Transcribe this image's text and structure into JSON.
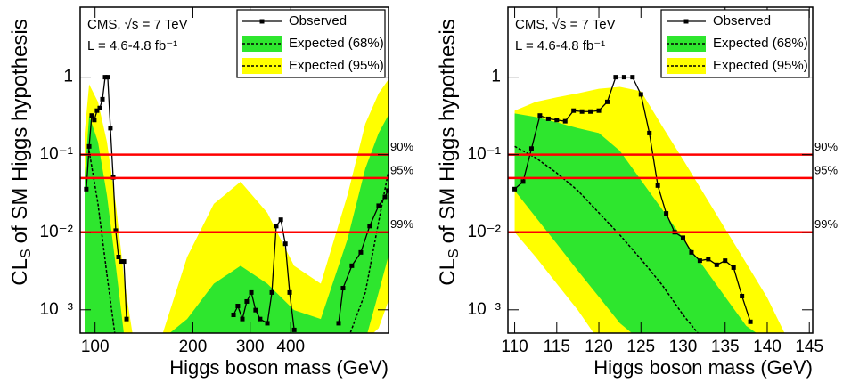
{
  "chart_data": [
    {
      "type": "line",
      "log_x": true,
      "log_y": true,
      "xlim": [
        90,
        800
      ],
      "ylim": [
        0.0005,
        8
      ],
      "xticks": [
        100,
        200,
        300,
        400
      ],
      "yticks": [
        1,
        {
          "value": 0.1,
          "label": "10⁻¹"
        },
        {
          "value": 0.01,
          "label": "10⁻²"
        },
        {
          "value": 0.001,
          "label": "10⁻³"
        }
      ],
      "xlabel": "Higgs boson mass (GeV)",
      "ylabel": "CL",
      "ylabel_sub": "S",
      "ylabel_rest": "of SM Higgs hypothesis",
      "annotations": [
        "CMS, √s = 7 TeV",
        "L = 4.6-4.8 fb⁻¹"
      ],
      "ref_color": "#ff0000",
      "ref_lines": [
        {
          "value": 0.1,
          "label": "90%"
        },
        {
          "value": 0.05,
          "label": "95%"
        },
        {
          "value": 0.01,
          "label": "99%"
        }
      ],
      "legend": "top-right",
      "series": [
        {
          "name": "Observed",
          "color": "#000000",
          "x": [
            94.0,
            95.9,
            97.7,
            99.5,
            101.4,
            103.4,
            105.4,
            107.4,
            109.4,
            111.5,
            113.7,
            115.8,
            118.1,
            120.3,
            122.7,
            125.0,
            null,
            266.7,
            275,
            284,
            293,
            302.6,
            312,
            322,
            339,
            350,
            361,
            373,
            385,
            397,
            410,
            null,
            561.7,
            579.6,
            617,
            657.5,
            700,
            746,
            780,
            798
          ],
          "values": [
            0.036,
            0.128,
            0.32,
            0.28,
            0.37,
            0.4,
            0.52,
            1,
            1,
            0.22,
            0.051,
            0.0105,
            0.0048,
            0.0042,
            0.0042,
            0.00076,
            null,
            0.00086,
            0.00112,
            0.00076,
            0.00128,
            0.00167,
            0.00099,
            0.00076,
            0.00067,
            0.00167,
            0.012,
            0.0145,
            0.0071,
            0.00167,
            0.00055,
            null,
            0.00067,
            0.0019,
            0.0037,
            0.0055,
            0.012,
            0.022,
            0.0286,
            0.0345
          ]
        }
      ],
      "band_x": [
        92.9,
        95.9,
        102.1,
        108.8,
        115.8,
        123.4,
        131.4,
        158.9,
        192,
        232,
        280.4,
        338.9,
        409.7,
        495,
        598,
        678.8,
        746,
        798
      ],
      "expected": [
        null,
        0.112,
        0.0232,
        0.00283,
        0.0004,
        null,
        null,
        null,
        null,
        null,
        null,
        null,
        null,
        null,
        0.0004,
        0.00167,
        0.0137,
        0.058
      ],
      "bands": [
        {
          "name": "Expected (68%)",
          "color": "#2ee62e",
          "upper": [
            0.051,
            0.32,
            0.146,
            0.03,
            0.0037,
            0.0004,
            0.0004,
            0.0004,
            0.00076,
            0.00217,
            0.0037,
            0.00217,
            0.00099,
            0.00076,
            0.0081,
            0.0665,
            0.19,
            0.32
          ],
          "lower": [
            0.0004,
            0.0004,
            0.0004,
            0.0004,
            0.0004,
            0.0004,
            0.0004,
            0.0004,
            0.0004,
            0.0004,
            0.0004,
            0.0004,
            0.0004,
            0.0004,
            0.0004,
            0.0004,
            0.00167,
            0.0048
          ]
        },
        {
          "name": "Expected (95%)",
          "color": "#ffff00",
          "upper": [
            0.19,
            0.81,
            0.48,
            0.146,
            0.0232,
            0.00217,
            0.0004,
            0.0004,
            0.0048,
            0.0232,
            0.0448,
            0.0178,
            0.0037,
            0.00217,
            0.03,
            0.25,
            0.62,
            0.924
          ],
          "lower": [
            0.0004,
            0.0004,
            0.0004,
            0.0004,
            0.0004,
            0.0004,
            0.0004,
            0.0004,
            0.0004,
            0.0004,
            0.0004,
            0.0004,
            0.0004,
            0.0004,
            0.0004,
            0.0004,
            0.00058,
            0.00128
          ]
        }
      ]
    },
    {
      "type": "line",
      "log_x": false,
      "log_y": true,
      "xlim": [
        109.2,
        145.4
      ],
      "ylim": [
        0.0005,
        8
      ],
      "xticks": [
        110,
        115,
        120,
        125,
        130,
        135,
        140,
        145
      ],
      "yticks": [
        1,
        {
          "value": 0.1,
          "label": "10⁻¹"
        },
        {
          "value": 0.01,
          "label": "10⁻²"
        },
        {
          "value": 0.001,
          "label": "10⁻³"
        }
      ],
      "xlabel": "Higgs boson mass (GeV)",
      "ylabel": "CL",
      "ylabel_sub": "S",
      "ylabel_rest": "of SM Higgs hypothesis",
      "annotations": [
        "CMS, √s = 7 TeV",
        "L = 4.6-4.8 fb⁻¹"
      ],
      "ref_color": "#ff0000",
      "ref_lines": [
        {
          "value": 0.1,
          "label": "90%"
        },
        {
          "value": 0.05,
          "label": "95%"
        },
        {
          "value": 0.01,
          "label": "99%"
        }
      ],
      "legend": "top-right",
      "series": [
        {
          "name": "Observed",
          "color": "#000000",
          "x": [
            110,
            111,
            112,
            113,
            114,
            115,
            116,
            117,
            118,
            119,
            120,
            121,
            122,
            123,
            124,
            125,
            126,
            127,
            128,
            129,
            130,
            131,
            132,
            133,
            134,
            135,
            136,
            137,
            138
          ],
          "values": [
            0.036,
            0.045,
            0.12,
            0.32,
            0.29,
            0.28,
            0.27,
            0.37,
            0.36,
            0.36,
            0.37,
            0.48,
            1.0,
            1.0,
            1.0,
            0.6,
            0.19,
            0.04,
            0.0175,
            0.01,
            0.0085,
            0.0055,
            0.0043,
            0.0045,
            0.0038,
            0.0043,
            0.0035,
            0.0015,
            0.0007
          ]
        }
      ],
      "band_x": [
        110,
        112.5,
        115,
        117.5,
        120,
        122.5,
        125,
        127.5,
        130,
        132.5,
        135,
        137.5,
        140,
        142.5,
        145
      ],
      "expected": [
        0.128,
        0.091,
        0.058,
        0.0345,
        0.0178,
        0.0092,
        0.0045,
        0.0021,
        0.00086,
        0.0004,
        null,
        null,
        null,
        null,
        null
      ],
      "bands": [
        {
          "name": "Expected (68%)",
          "color": "#2ee62e",
          "upper": [
            0.34,
            0.306,
            0.261,
            0.22,
            0.19,
            0.112,
            0.047,
            0.0198,
            0.0083,
            0.0035,
            0.00147,
            0.00062,
            0.0004,
            0.0004,
            0.0004
          ],
          "lower": [
            0.0345,
            0.0156,
            0.0071,
            0.0032,
            0.00147,
            0.00067,
            0.0004,
            0.0004,
            0.0004,
            0.0004,
            0.0004,
            0.0004,
            0.0004,
            0.0004,
            0.0004
          ]
        },
        {
          "name": "Expected (95%)",
          "color": "#ffff00",
          "upper": [
            0.37,
            0.48,
            0.55,
            0.62,
            0.71,
            0.75,
            0.66,
            0.235,
            0.0865,
            0.031,
            0.0111,
            0.004,
            0.00143,
            0.0004,
            0.0004
          ],
          "lower": [
            0.01,
            0.0048,
            0.00217,
            0.00099,
            0.0004,
            0.0004,
            0.0004,
            0.0004,
            0.0004,
            0.0004,
            0.0004,
            0.0004,
            0.0004,
            0.0004,
            0.0004
          ]
        }
      ]
    }
  ]
}
